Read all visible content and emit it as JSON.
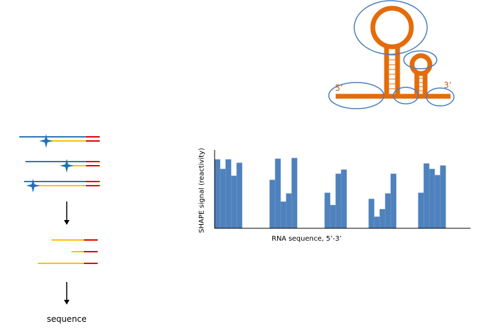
{
  "labels": {
    "five_prime": "5’",
    "three_prime": "3’",
    "sequence": "sequence"
  },
  "chart_data": {
    "type": "bar",
    "x_label": "RNA sequence, 5’-3’",
    "y_label": "SHAPE signal (reactivity)",
    "color": "#4f81bd",
    "ylim": [
      0,
      115
    ],
    "values": [
      101,
      87,
      101,
      77,
      96,
      null,
      null,
      null,
      null,
      null,
      71,
      102,
      39,
      51,
      103,
      null,
      null,
      null,
      null,
      null,
      52,
      34,
      80,
      86,
      null,
      null,
      null,
      null,
      43,
      17,
      28,
      51,
      80,
      null,
      null,
      null,
      null,
      52,
      95,
      87,
      78,
      92,
      null,
      null,
      null,
      null
    ]
  }
}
